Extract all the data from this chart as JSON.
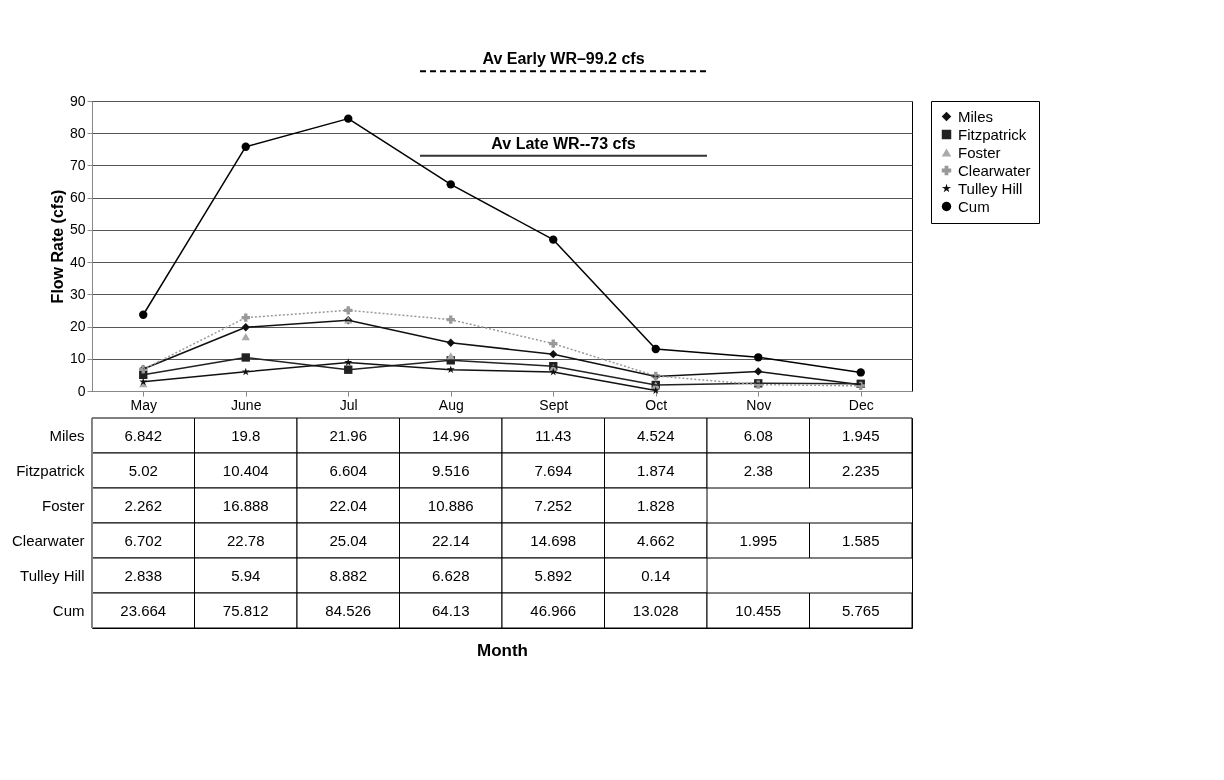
{
  "chart_data": {
    "type": "line",
    "annotations": [
      "Month"
    ],
    "ylabel": "Flow Rate (cfs)",
    "categories": [
      "May",
      "June",
      "Jul",
      "Aug",
      "Sept",
      "Oct",
      "Nov",
      "Dec"
    ],
    "series": [
      {
        "name": "Miles",
        "color": "#111111",
        "marker": "diamond",
        "values": [
          6.842,
          19.8,
          21.96,
          14.96,
          11.43,
          4.524,
          6.08,
          1.945
        ]
      },
      {
        "name": "Fitzpatrick",
        "color": "#222222",
        "marker": "square",
        "values": [
          5.02,
          10.404,
          6.604,
          9.516,
          7.694,
          1.874,
          2.38,
          2.235
        ]
      },
      {
        "name": "Foster",
        "type": "scatter",
        "color": "#aaaaaa",
        "marker": "triangle",
        "values": [
          2.262,
          16.888,
          22.04,
          10.886,
          7.252,
          1.828,
          null,
          null
        ]
      },
      {
        "name": "Clearwater",
        "color": "#999999",
        "marker": "cross",
        "line_style": "dotted",
        "values": [
          6.702,
          22.78,
          25.04,
          22.14,
          14.698,
          4.662,
          1.995,
          1.585
        ]
      },
      {
        "name": "Tulley Hill",
        "color": "#111111",
        "marker": "star",
        "values": [
          2.838,
          5.94,
          8.882,
          6.628,
          5.892,
          0.14,
          null,
          null
        ]
      },
      {
        "name": "Cum",
        "color": "#000000",
        "marker": "circle",
        "values": [
          23.664,
          75.812,
          84.526,
          64.13,
          46.966,
          13.028,
          10.455,
          5.765
        ]
      }
    ],
    "ylim": [
      0,
      90
    ],
    "yticks": [
      0,
      10,
      20,
      30,
      40,
      50,
      60,
      70,
      80,
      90
    ],
    "grid": "y",
    "legend": "top right",
    "data_labels": true,
    "ref_lines": [
      {
        "axis": "y",
        "value": 99.2,
        "label": "Av Early WR–99.2 cfs",
        "line_style": "dashed",
        "color": "#000000"
      },
      {
        "axis": "y",
        "value": 73,
        "label": "Av Late WR--73 cfs",
        "line_style": "solid",
        "color": "#333333"
      }
    ]
  }
}
